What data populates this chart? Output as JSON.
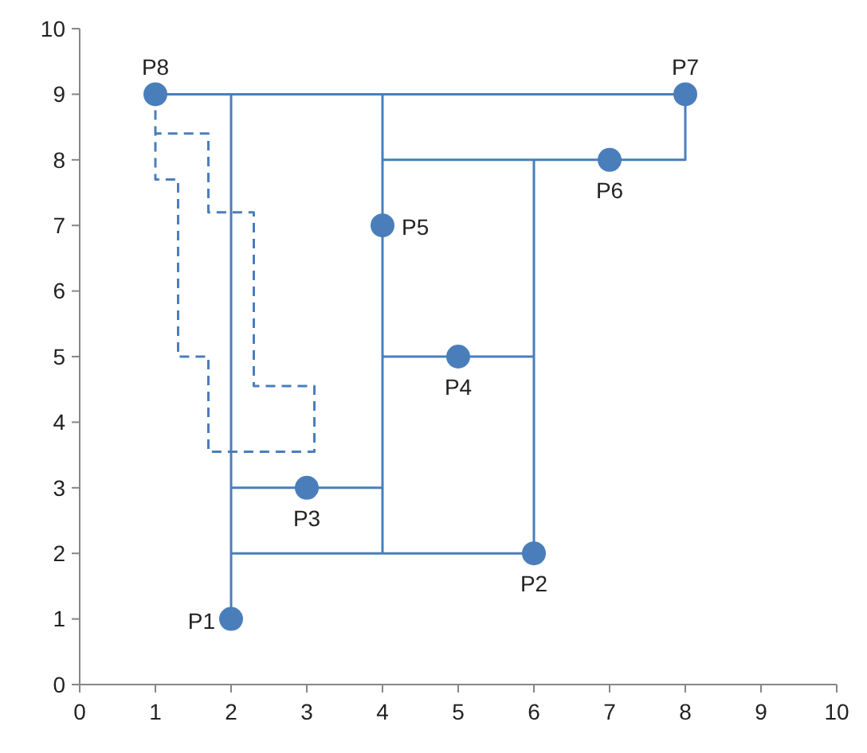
{
  "chart_data": {
    "type": "scatter",
    "xlim": [
      0,
      10
    ],
    "ylim": [
      0,
      10
    ],
    "xticks": [
      0,
      1,
      2,
      3,
      4,
      5,
      6,
      7,
      8,
      9,
      10
    ],
    "yticks": [
      0,
      1,
      2,
      3,
      4,
      5,
      6,
      7,
      8,
      9,
      10
    ],
    "grid": false,
    "series": [
      {
        "type": "line",
        "color": "#4a7ebb",
        "marker": "none",
        "line_style": "solid",
        "x": [
          1,
          8,
          8,
          4
        ],
        "values": [
          9,
          9,
          8,
          8
        ]
      },
      {
        "type": "line",
        "color": "#4a7ebb",
        "marker": "none",
        "line_style": "solid",
        "x": [
          2,
          2
        ],
        "values": [
          1,
          9
        ]
      },
      {
        "type": "line",
        "color": "#4a7ebb",
        "marker": "none",
        "line_style": "solid",
        "x": [
          4,
          4
        ],
        "values": [
          2,
          9
        ]
      },
      {
        "type": "line",
        "color": "#4a7ebb",
        "marker": "none",
        "line_style": "solid",
        "x": [
          6,
          6
        ],
        "values": [
          2,
          8
        ]
      },
      {
        "type": "line",
        "color": "#4a7ebb",
        "marker": "none",
        "line_style": "solid",
        "x": [
          4,
          6
        ],
        "values": [
          5,
          5
        ]
      },
      {
        "type": "line",
        "color": "#4a7ebb",
        "marker": "none",
        "line_style": "solid",
        "x": [
          2,
          4
        ],
        "values": [
          3,
          3
        ]
      },
      {
        "type": "line",
        "color": "#4a7ebb",
        "marker": "none",
        "line_style": "solid",
        "x": [
          2,
          6
        ],
        "values": [
          2,
          2
        ]
      },
      {
        "type": "line",
        "color": "#4a7ebb",
        "marker": "none",
        "line_style": "dashed",
        "x": [
          1,
          1,
          1.3,
          1.3,
          1.7,
          1.7,
          3.1,
          3.1,
          2.3,
          2.3,
          1.7,
          1.7,
          1
        ],
        "values": [
          9,
          7.7,
          7.7,
          5,
          5,
          3.55,
          3.55,
          4.55,
          4.55,
          7.2,
          7.2,
          8.4,
          8.4
        ]
      },
      {
        "color": "#4a7ebb",
        "marker": "circle",
        "x": [
          2,
          6,
          3,
          5,
          4,
          7,
          8,
          1
        ],
        "values": [
          1,
          2,
          3,
          5,
          7,
          8,
          9,
          9
        ],
        "value_labels": [
          "P1",
          "P2",
          "P3",
          "P4",
          "P5",
          "P6",
          "P7",
          "P8"
        ]
      }
    ]
  }
}
